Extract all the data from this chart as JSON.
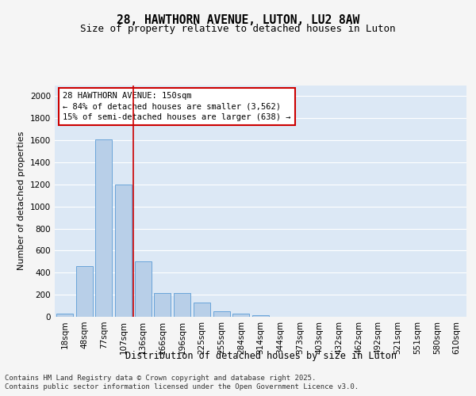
{
  "title_line1": "28, HAWTHORN AVENUE, LUTON, LU2 8AW",
  "title_line2": "Size of property relative to detached houses in Luton",
  "xlabel": "Distribution of detached houses by size in Luton",
  "ylabel": "Number of detached properties",
  "categories": [
    "18sqm",
    "48sqm",
    "77sqm",
    "107sqm",
    "136sqm",
    "166sqm",
    "196sqm",
    "225sqm",
    "255sqm",
    "284sqm",
    "314sqm",
    "344sqm",
    "373sqm",
    "403sqm",
    "432sqm",
    "462sqm",
    "492sqm",
    "521sqm",
    "551sqm",
    "580sqm",
    "610sqm"
  ],
  "values": [
    30,
    460,
    1610,
    1200,
    500,
    215,
    215,
    130,
    50,
    30,
    15,
    0,
    0,
    0,
    0,
    0,
    0,
    0,
    0,
    0,
    0
  ],
  "bar_color": "#b8cfe8",
  "bar_edge_color": "#5b9bd5",
  "ref_line_color": "#cc0000",
  "annotation_text": "28 HAWTHORN AVENUE: 150sqm\n← 84% of detached houses are smaller (3,562)\n15% of semi-detached houses are larger (638) →",
  "annotation_box_color": "#cc0000",
  "ylim": [
    0,
    2100
  ],
  "yticks": [
    0,
    200,
    400,
    600,
    800,
    1000,
    1200,
    1400,
    1600,
    1800,
    2000
  ],
  "plot_bg_color": "#dce8f5",
  "grid_color": "#ffffff",
  "fig_bg_color": "#f5f5f5",
  "footer_line1": "Contains HM Land Registry data © Crown copyright and database right 2025.",
  "footer_line2": "Contains public sector information licensed under the Open Government Licence v3.0.",
  "title_fontsize": 10.5,
  "subtitle_fontsize": 9,
  "axis_label_fontsize": 8.5,
  "tick_fontsize": 7.5,
  "annotation_fontsize": 7.5,
  "footer_fontsize": 6.5,
  "ylabel_fontsize": 8
}
